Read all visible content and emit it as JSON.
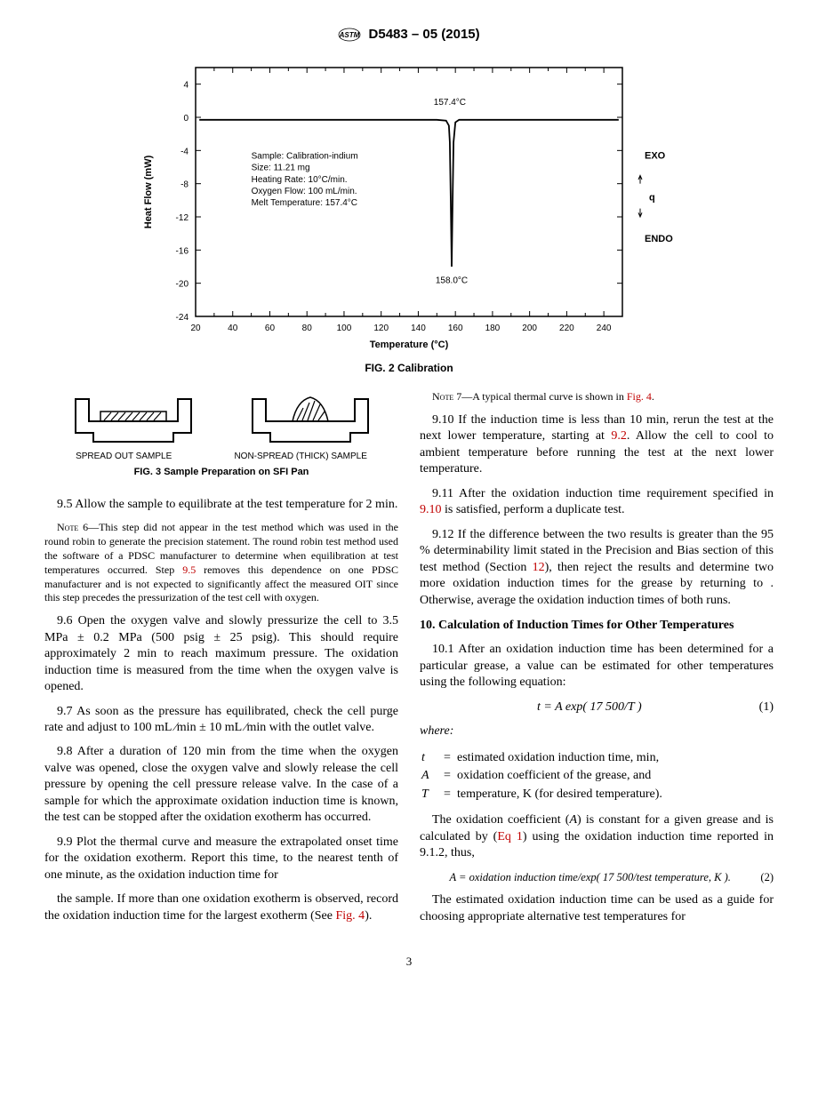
{
  "header": {
    "designation": "D5483 – 05 (2015)"
  },
  "fig2": {
    "type": "line",
    "caption": "FIG. 2  Calibration",
    "xlabel": "Temperature (°C)",
    "ylabel": "Heat Flow (mW)",
    "xlim": [
      20,
      250
    ],
    "ylim": [
      -24,
      6
    ],
    "xticks": [
      20,
      40,
      60,
      80,
      100,
      120,
      140,
      160,
      180,
      200,
      220,
      240
    ],
    "yticks": [
      -24,
      -20,
      -16,
      -12,
      -8,
      -4,
      0,
      4
    ],
    "background_color": "#ffffff",
    "axis_color": "#000000",
    "line_color": "#000000",
    "line_width": 1.8,
    "label_fontsize": 11,
    "tick_fontsize": 10,
    "annotation_fontsize": 10,
    "onset_label": "157.4°C",
    "peak_label": "158.0°C",
    "right_labels": {
      "exo": "EXO",
      "q": "q",
      "endo": "ENDO"
    },
    "sample_box_lines": [
      "Sample: Calibration-indium",
      "Size: 11.21 mg",
      "Heating Rate: 10°C/min.",
      "Oxygen Flow: 100 mL/min.",
      "Melt Temperature: 157.4°C"
    ],
    "curve": [
      [
        22,
        -0.3
      ],
      [
        40,
        -0.3
      ],
      [
        70,
        -0.3
      ],
      [
        100,
        -0.3
      ],
      [
        130,
        -0.3
      ],
      [
        150,
        -0.3
      ],
      [
        155,
        -0.4
      ],
      [
        156.5,
        -1.0
      ],
      [
        157,
        -3.0
      ],
      [
        157.5,
        -10.0
      ],
      [
        158,
        -18.0
      ],
      [
        158.5,
        -10.0
      ],
      [
        159,
        -3.0
      ],
      [
        160,
        -0.6
      ],
      [
        162,
        -0.3
      ],
      [
        180,
        -0.3
      ],
      [
        210,
        -0.3
      ],
      [
        248,
        -0.3
      ]
    ]
  },
  "fig3": {
    "caption": "FIG. 3  Sample Preparation on SFI Pan",
    "left_label": "SPREAD OUT SAMPLE",
    "right_label": "NON-SPREAD (THICK) SAMPLE",
    "stroke": "#000000"
  },
  "body": {
    "p9_5": "9.5 Allow the sample to equilibrate at the test temperature for 2 min.",
    "note6_label": "Note 6—",
    "note6": "This step did not appear in the test method which was used in the round robin to generate the precision statement. The round robin test method used the software of a PDSC manufacturer to determine when equilibration at test temperatures occurred. Step ",
    "note6_link": "9.5",
    "note6_cont": " removes this dependence on one PDSC manufacturer and is not expected to significantly affect the measured OIT since this step precedes the pressurization of the test cell with oxygen.",
    "p9_6": "9.6 Open the oxygen valve and slowly pressurize the cell to 3.5 MPa ± 0.2 MPa (500 psig ± 25 psig). This should require approximately 2 min to reach maximum pressure. The oxidation induction time is measured from the time when the oxygen valve is opened.",
    "p9_7": "9.7 As soon as the pressure has equilibrated, check the cell purge rate and adjust to 100 mL ⁄min ± 10 mL ⁄min with the outlet valve.",
    "p9_8": "9.8 After a duration of 120 min from the time when the oxygen valve was opened, close the oxygen valve and slowly release the cell pressure by opening the cell pressure release valve. In the case of a sample for which the approximate oxidation induction time is known, the test can be stopped after the oxidation exotherm has occurred.",
    "p9_9a": "9.9 Plot the thermal curve and measure the extrapolated onset time for the oxidation exotherm. Report this time, to the nearest tenth of one minute, as the oxidation induction time for ",
    "p9_9b": "the sample. If more than one oxidation exotherm is observed, record the oxidation induction time for the largest exotherm (See ",
    "fig4_link": "Fig. 4",
    "p9_9c": ").",
    "note7_label": "Note 7—",
    "note7": "A typical thermal curve is shown in ",
    "note7_end": ".",
    "p9_10a": "9.10 If the induction time is less than 10 min, rerun the test at the next lower temperature, starting at ",
    "link9_2": "9.2",
    "p9_10b": ". Allow the cell to cool to ambient temperature before running the test at the next lower temperature.",
    "p9_11a": "9.11 After the oxidation induction time requirement specified in ",
    "link9_10": "9.10",
    "p9_11b": " is satisfied, perform a duplicate test.",
    "p9_12a": "9.12 If the difference between the two results is greater than the 95 % determinability limit stated in the Precision and Bias section of this test method (Section ",
    "link12": "12",
    "p9_12b": "), then reject the results and determine two more oxidation induction times for the grease by returning to . Otherwise, average the oxidation induction times of both runs.",
    "sec10_title": "10.  Calculation of Induction Times for Other Temperatures",
    "p10_1": "10.1 After an oxidation induction time has been determined for a particular grease, a value can be estimated for other temperatures using the following equation:",
    "eq1": "t = A exp( 17 500/T )",
    "eq1_num": "(1)",
    "where_label": "where:",
    "def_t_sym": "t",
    "def_t": "estimated oxidation induction time, min,",
    "def_A_sym": "A",
    "def_A": "oxidation coefficient of the grease, and",
    "def_T_sym": "T",
    "def_T": "temperature, K (for desired temperature).",
    "p10_coef_a": "The oxidation coefficient (",
    "p10_coef_a_sym": "A",
    "p10_coef_b": ") is constant for a given grease and is calculated by (",
    "eq1_link": "Eq 1",
    "p10_coef_c": ") using the oxidation induction time reported in 9.1.2, thus,",
    "eq2": "A = oxidation induction time/exp( 17 500/test temperature, K ).",
    "eq2_num": "(2)",
    "p10_last": "The estimated oxidation induction time can be used as a guide for choosing appropriate alternative test temperatures for"
  },
  "page_number": "3"
}
